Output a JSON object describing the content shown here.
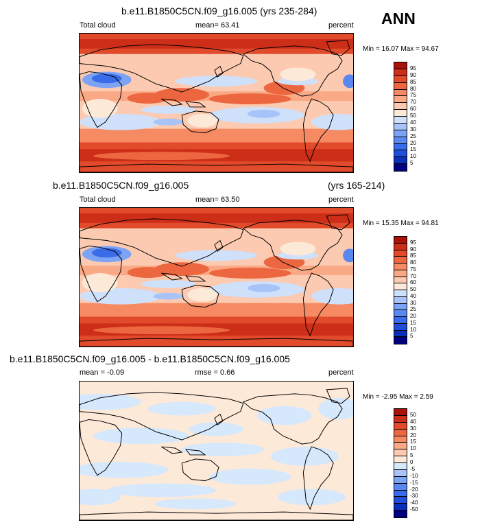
{
  "annotation": "ANN",
  "chart_data": [
    {
      "type": "heatmap",
      "title": "b.e11.B1850C5CN.f09_g16.005 (yrs 235-284)",
      "left_label": "Total cloud",
      "center_label": "mean=  63.41",
      "right_label": "percent",
      "minmax": "Min = 16.07 Max =  94.67",
      "levels": [
        "5",
        "10",
        "15",
        "20",
        "25",
        "30",
        "40",
        "50",
        "60",
        "70",
        "75",
        "80",
        "85",
        "90",
        "95"
      ],
      "colors": [
        "#00007f",
        "#0a2fb8",
        "#1f4fd8",
        "#3a6be8",
        "#5a88f0",
        "#7da3f5",
        "#a8c3f8",
        "#cfe0fb",
        "#fde9d8",
        "#fccab0",
        "#f9a985",
        "#f58a63",
        "#ec6640",
        "#e14a2a",
        "#cc2e18",
        "#a81208"
      ]
    },
    {
      "type": "heatmap",
      "title_left": "b.e11.B1850C5CN.f09_g16.005",
      "title_right": "(yrs 165-214)",
      "left_label": "Total cloud",
      "center_label": "mean=  63.50",
      "right_label": "percent",
      "minmax": "Min = 15.35 Max =  94.81",
      "levels": [
        "5",
        "10",
        "15",
        "20",
        "25",
        "30",
        "40",
        "50",
        "60",
        "70",
        "75",
        "80",
        "85",
        "90",
        "95"
      ],
      "colors": [
        "#00007f",
        "#0a2fb8",
        "#1f4fd8",
        "#3a6be8",
        "#5a88f0",
        "#7da3f5",
        "#a8c3f8",
        "#cfe0fb",
        "#fde9d8",
        "#fccab0",
        "#f9a985",
        "#f58a63",
        "#ec6640",
        "#e14a2a",
        "#cc2e18",
        "#a81208"
      ]
    },
    {
      "type": "heatmap",
      "title": "b.e11.B1850C5CN.f09_g16.005 - b.e11.B1850C5CN.f09_g16.005",
      "left_label": "mean =  -0.09",
      "center_label": "rmse =   0.66",
      "right_label": "percent",
      "minmax": "Min =  -2.95 Max =   2.59",
      "levels": [
        "-50",
        "-40",
        "-30",
        "-20",
        "-15",
        "-10",
        "-5",
        "0",
        "5",
        "10",
        "15",
        "20",
        "30",
        "40",
        "50"
      ],
      "colors": [
        "#00007f",
        "#0a2fb8",
        "#1f4fd8",
        "#3a6be8",
        "#5a88f0",
        "#7da3f5",
        "#a8c3f8",
        "#d6e8fb",
        "#fde9d8",
        "#fccab0",
        "#f9a985",
        "#f58a63",
        "#ec6640",
        "#e14a2a",
        "#cc2e18",
        "#a81208"
      ]
    }
  ]
}
